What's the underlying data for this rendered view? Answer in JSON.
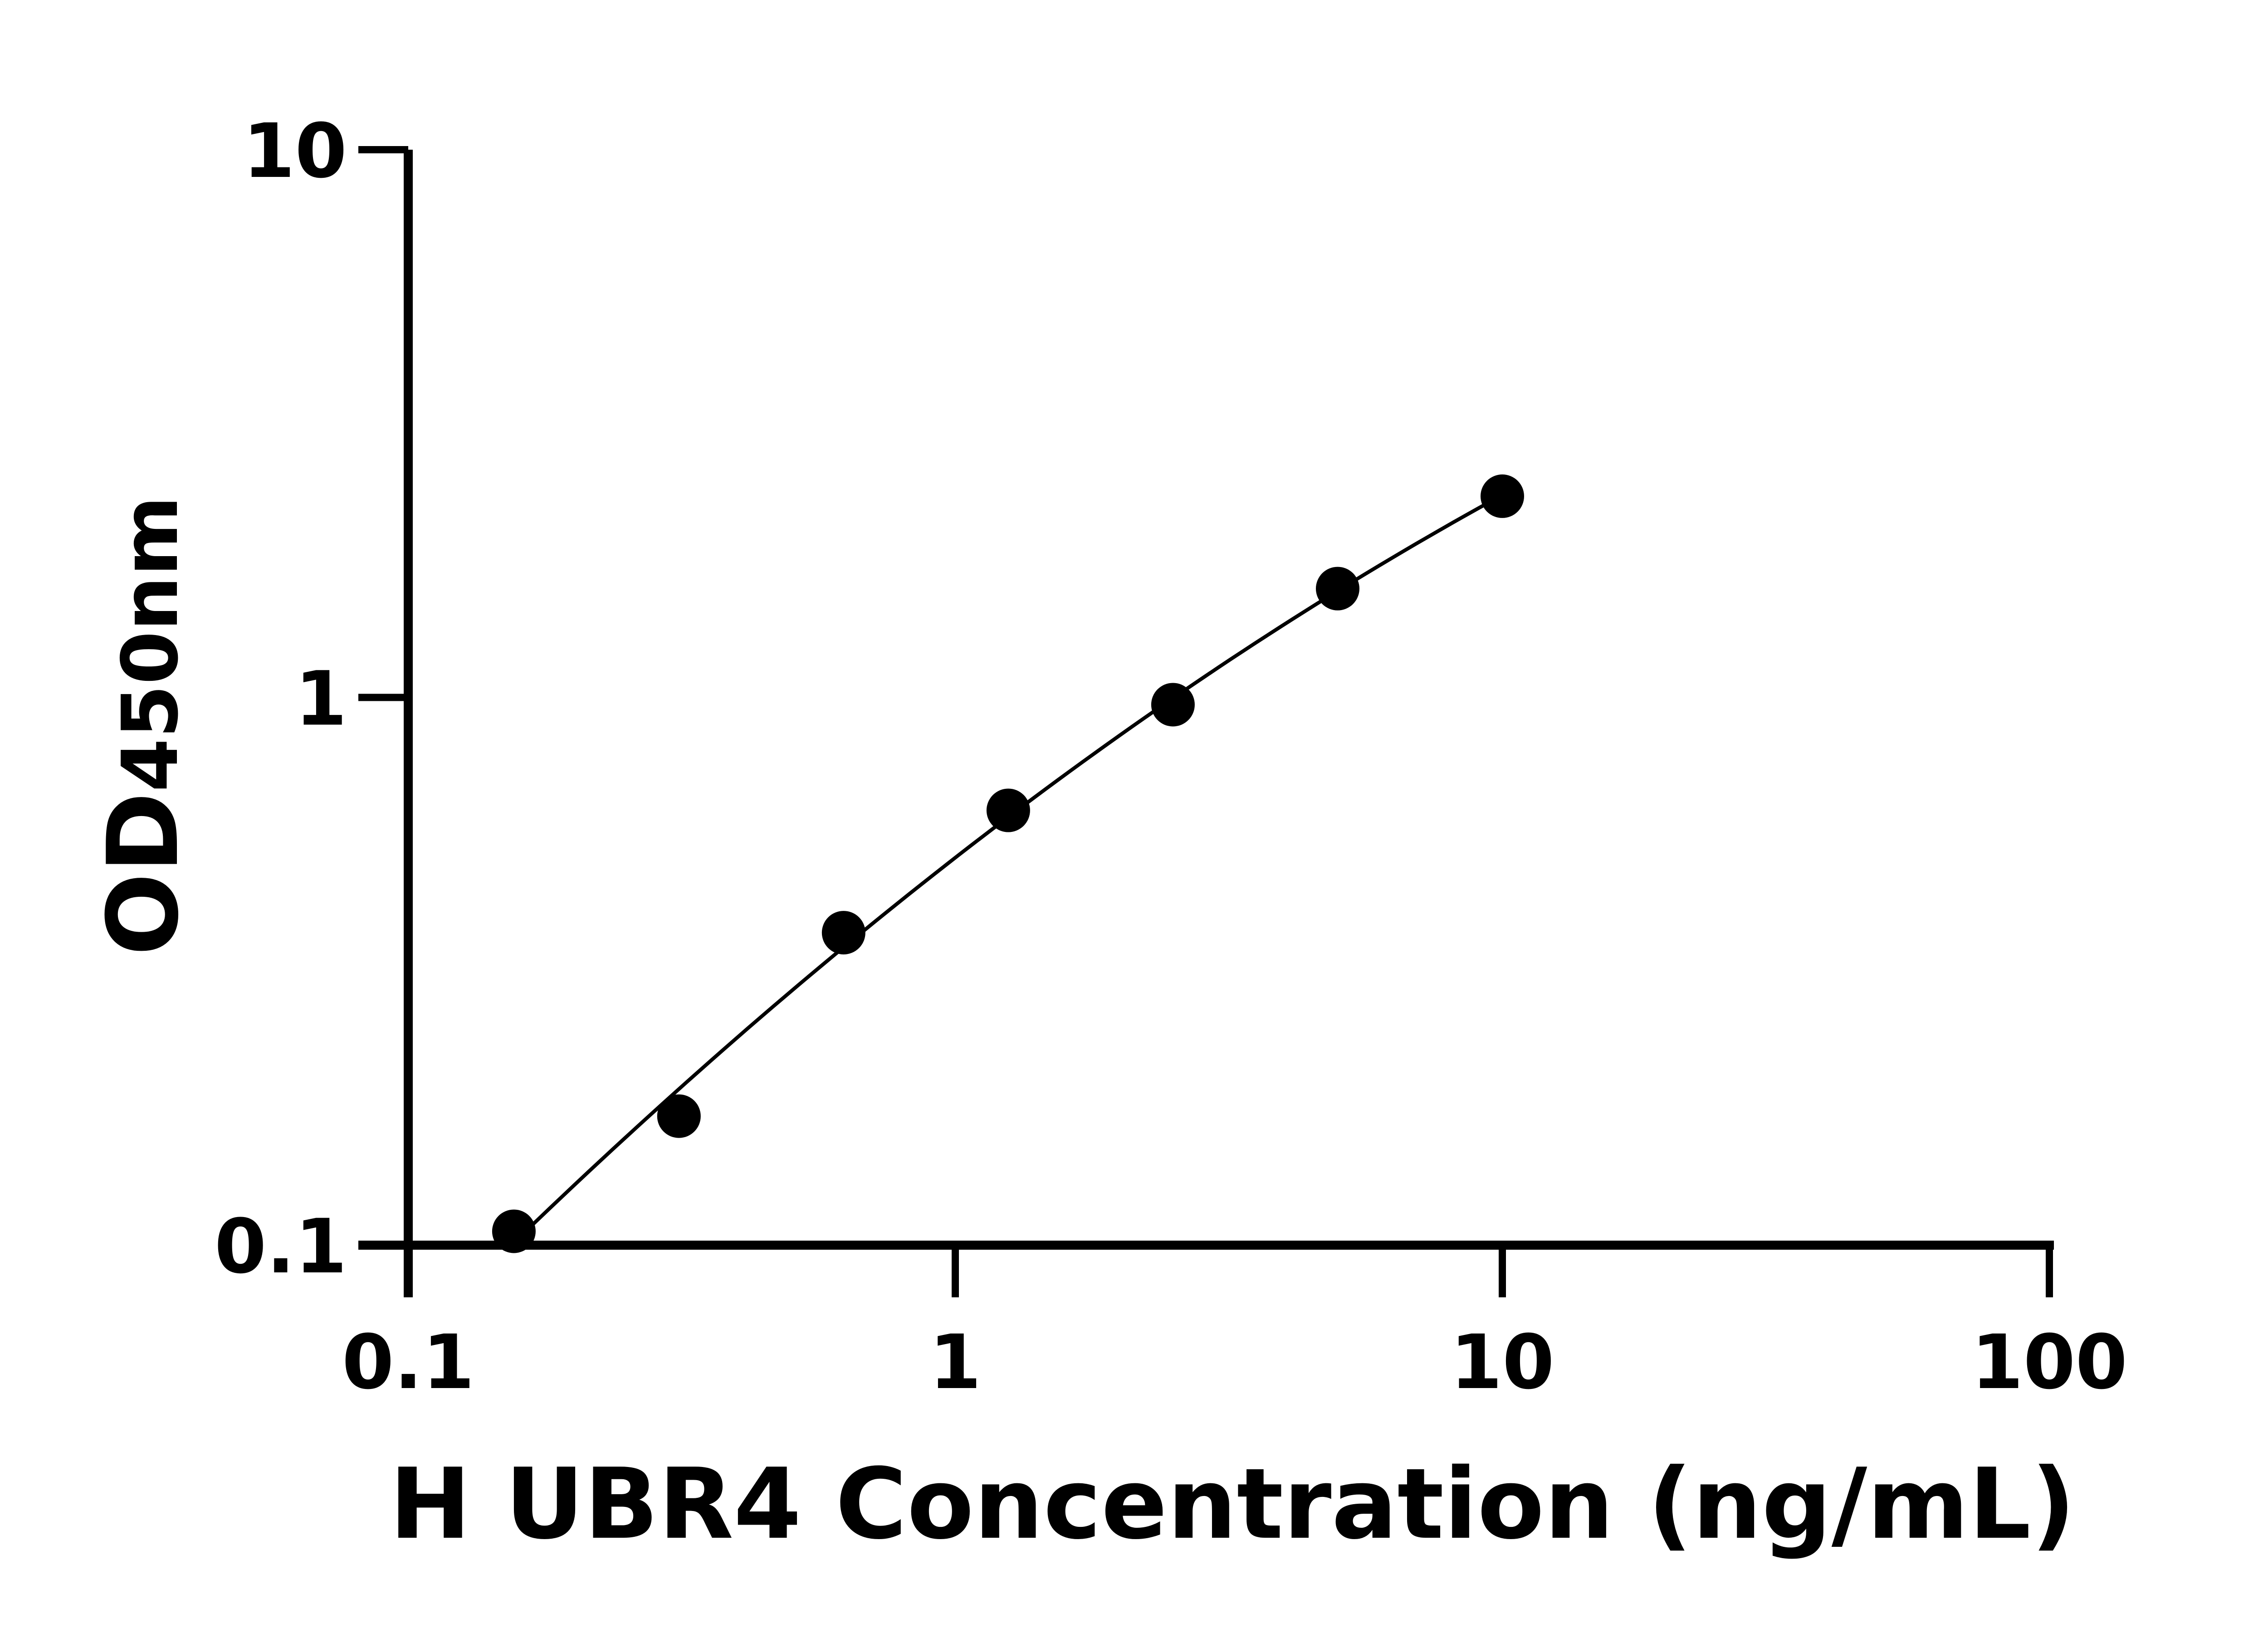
{
  "chart_data": {
    "type": "scatter",
    "title": "",
    "xlabel": "H UBR4 Concentration (ng/mL)",
    "ylabel": "OD450nm",
    "ylabel_main": "OD",
    "ylabel_sub": "450nm",
    "xscale": "log",
    "yscale": "log",
    "xlim": [
      0.1,
      100
    ],
    "ylim": [
      0.1,
      10
    ],
    "xticks": [
      "0.1",
      "1",
      "10",
      "100"
    ],
    "yticks": [
      "0.1",
      "1",
      "10"
    ],
    "grid": false,
    "fit_line": true,
    "marker_color": "#000000",
    "x": [
      0.156,
      0.3125,
      0.625,
      1.25,
      2.5,
      5,
      10
    ],
    "y": [
      0.106,
      0.172,
      0.372,
      0.622,
      0.97,
      1.58,
      2.33
    ]
  }
}
